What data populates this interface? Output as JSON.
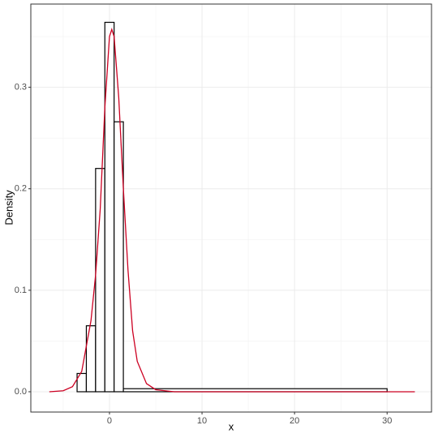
{
  "chart_data": {
    "type": "histogram",
    "x_label": "x",
    "y_label": "Density",
    "bins": [
      -3.5,
      -2.5,
      -1.5,
      -0.5,
      0.5,
      1.5,
      30
    ],
    "values": [
      0.018,
      0.065,
      0.22,
      0.364,
      0.266,
      0.003
    ],
    "color": "#000000",
    "density": {
      "type": "line",
      "color": "#cc0022",
      "x": [
        -6.5,
        -5,
        -4,
        -3,
        -2,
        -1.5,
        -1,
        -0.5,
        0,
        0.25,
        0.5,
        1,
        1.5,
        2,
        2.5,
        3,
        4,
        5,
        7,
        10,
        33
      ],
      "values": [
        0,
        0.001,
        0.005,
        0.02,
        0.07,
        0.115,
        0.18,
        0.28,
        0.35,
        0.357,
        0.35,
        0.29,
        0.2,
        0.12,
        0.06,
        0.03,
        0.008,
        0.002,
        0,
        0,
        0
      ]
    },
    "xlim": [
      -8.5,
      34.8
    ],
    "ylim": [
      -0.02,
      0.382
    ],
    "xticks": [
      0,
      10,
      20,
      30
    ],
    "yticks": [
      {
        "value": 0,
        "label": "0.0"
      },
      0.1,
      0.2,
      0.3
    ],
    "grid": true
  }
}
